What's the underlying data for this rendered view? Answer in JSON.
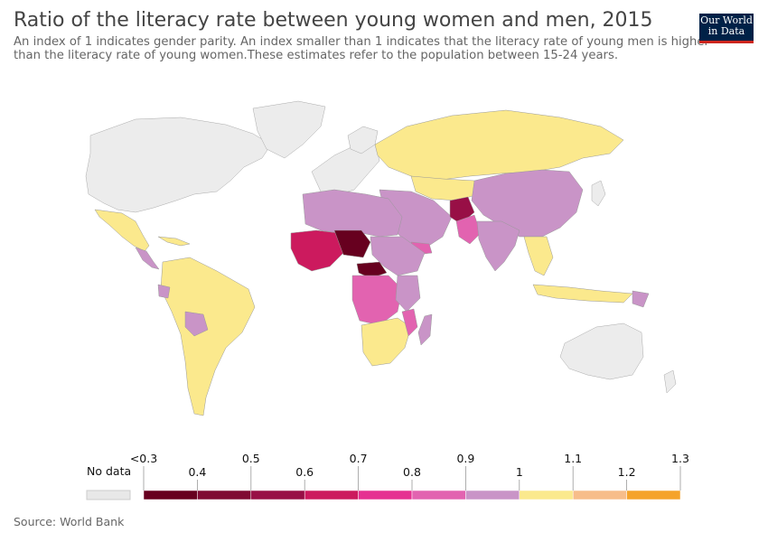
{
  "header": {
    "title": "Ratio of the literacy rate between young women and men, 2015",
    "subtitle_line1": "An index of 1 indicates gender parity. An index smaller than 1 indicates that the literacy rate of young men is higher",
    "subtitle_line2": "than the literacy rate of young women.These estimates refer to the population between 15-24 years.",
    "logo_line1": "Our World",
    "logo_line2": "in Data"
  },
  "legend": {
    "no_data_label": "No data",
    "upper_labels": [
      "<0.3",
      "0.5",
      "0.7",
      "0.9",
      "1.1",
      "1.3"
    ],
    "lower_labels": [
      "0.4",
      "0.6",
      "0.8",
      "1",
      "1.2"
    ],
    "colors": [
      "#67001f",
      "#7f0a33",
      "#980f46",
      "#cc1a5e",
      "#e53191",
      "#e263b0",
      "#c994c7",
      "#fbe98d",
      "#f7bd8a",
      "#f5a32a"
    ],
    "no_data_color": "#e8e8e8"
  },
  "map": {
    "colors": {
      "no_data": "#ececec",
      "parity_high": "#fbe98d",
      "parity_low": "#c994c7",
      "mid": "#e263b0",
      "low": "#cc1a5e",
      "very_low": "#67001f"
    }
  },
  "footer": {
    "source": "Source: World Bank"
  }
}
